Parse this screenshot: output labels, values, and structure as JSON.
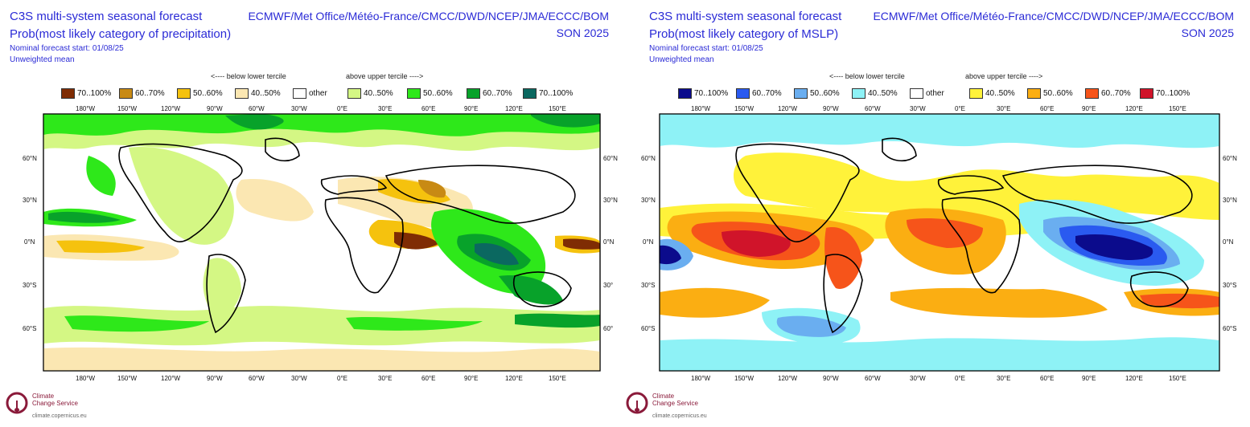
{
  "panels": [
    {
      "id": "precip",
      "title_line1": "C3S multi-system seasonal forecast",
      "title_line2": "Prob(most likely category of precipitation)",
      "nominal_start": "Nominal forecast start: 01/08/25",
      "mean_type": "Unweighted mean",
      "centres": "ECMWF/Met Office/Météo-France/CMCC/DWD/NCEP/JMA/ECCC/BOM",
      "season": "SON 2025",
      "tercile_below": "<---- below lower tercile",
      "tercile_above": "above upper tercile ---->",
      "legend": [
        {
          "label": "70..100%",
          "color": "#7f2c04"
        },
        {
          "label": "60..70%",
          "color": "#c88a14"
        },
        {
          "label": "50..60%",
          "color": "#f5c20e"
        },
        {
          "label": "40..50%",
          "color": "#fbe7b2"
        },
        {
          "label": "other",
          "color": "#ffffff"
        },
        {
          "label": "40..50%",
          "color": "#d4f784"
        },
        {
          "label": "50..60%",
          "color": "#2ee81a"
        },
        {
          "label": "60..70%",
          "color": "#08a22a"
        },
        {
          "label": "70..100%",
          "color": "#0b6860"
        }
      ]
    },
    {
      "id": "mslp",
      "title_line1": "C3S multi-system seasonal forecast",
      "title_line2": "Prob(most likely category of MSLP)",
      "nominal_start": "Nominal forecast start: 01/08/25",
      "mean_type": "Unweighted mean",
      "centres": "ECMWF/Met Office/Météo-France/CMCC/DWD/NCEP/JMA/ECCC/BOM",
      "season": "SON 2025",
      "tercile_below": "<---- below lower tercile",
      "tercile_above": "above upper tercile ---->",
      "legend": [
        {
          "label": "70..100%",
          "color": "#0b0b8c"
        },
        {
          "label": "60..70%",
          "color": "#2a5af0"
        },
        {
          "label": "50..60%",
          "color": "#6aaef0"
        },
        {
          "label": "40..50%",
          "color": "#8ef2f6"
        },
        {
          "label": "other",
          "color": "#ffffff"
        },
        {
          "label": "40..50%",
          "color": "#fff23a"
        },
        {
          "label": "50..60%",
          "color": "#fbae12"
        },
        {
          "label": "60..70%",
          "color": "#f6541a"
        },
        {
          "label": "70..100%",
          "color": "#d0142a"
        }
      ]
    }
  ],
  "axes": {
    "lon_labels": [
      "180°W",
      "150°W",
      "120°W",
      "90°W",
      "60°W",
      "30°W",
      "0°E",
      "30°E",
      "60°E",
      "90°E",
      "120°E",
      "150°E"
    ],
    "lat_labels_left": [
      "60°N",
      "30°N",
      "0°N",
      "30°S",
      "60°S"
    ],
    "lat_labels_right": [
      "60°N",
      "30°N",
      "0°N",
      "30°",
      "60°"
    ],
    "lat_labels_right_mslp": [
      "60°N",
      "30°N",
      "0°N",
      "30°S",
      "60°S"
    ]
  },
  "logo": {
    "line1": "Climate",
    "line2": "Change Service",
    "url": "climate.copernicus.eu"
  }
}
